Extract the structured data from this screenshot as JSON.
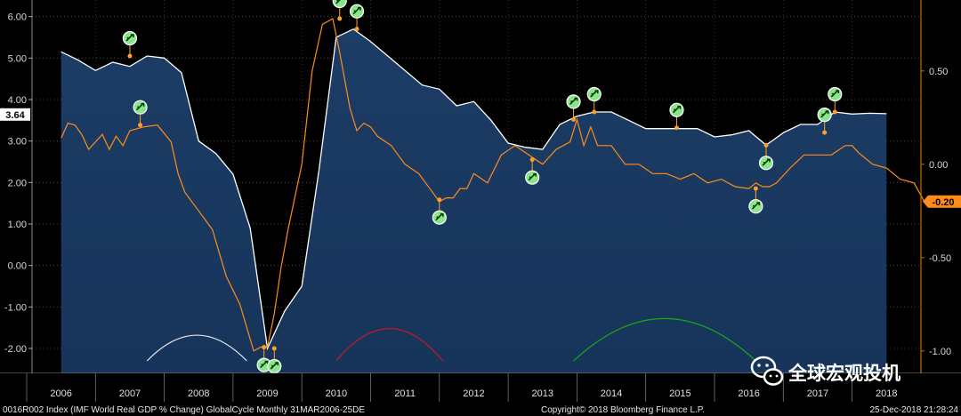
{
  "chart_data": {
    "type": "area",
    "left_axis": {
      "ticks": [
        "6.00",
        "5.00",
        "4.00",
        "3.00",
        "2.00",
        "1.00",
        "0.00",
        "-1.00",
        "-2.00"
      ],
      "ylim": [
        -2.6,
        6.4
      ]
    },
    "right_axis": {
      "ticks": [
        "0.50",
        "0.00",
        "-0.50",
        "-1.00"
      ],
      "ylim": [
        -1.12,
        0.88
      ]
    },
    "x_labels": [
      "2006",
      "2007",
      "2008",
      "2009",
      "2010",
      "2011",
      "2012",
      "2013",
      "2014",
      "2015",
      "2016",
      "2017",
      "2018"
    ],
    "series": [
      {
        "axis": "left",
        "color": "#ffffff",
        "fill": "#17345a",
        "x": [
          2006.0,
          2006.25,
          2006.5,
          2006.75,
          2007.0,
          2007.25,
          2007.5,
          2007.75,
          2008.0,
          2008.25,
          2008.5,
          2008.75,
          2009.0,
          2009.25,
          2009.5,
          2009.75,
          2010.0,
          2010.25,
          2010.5,
          2010.75,
          2011.0,
          2011.25,
          2011.5,
          2011.75,
          2012.0,
          2012.25,
          2012.5,
          2012.75,
          2013.0,
          2013.25,
          2013.5,
          2013.75,
          2014.0,
          2014.25,
          2014.5,
          2014.75,
          2015.0,
          2015.25,
          2015.5,
          2015.75,
          2016.0,
          2016.25,
          2016.5,
          2016.75,
          2017.0,
          2017.25,
          2017.5,
          2017.75,
          2018.0
        ],
        "y": [
          5.15,
          4.95,
          4.7,
          4.9,
          4.8,
          5.05,
          5.0,
          4.65,
          3.0,
          2.7,
          2.2,
          0.9,
          -2.0,
          -1.1,
          -0.5,
          2.3,
          5.5,
          5.7,
          5.4,
          5.05,
          4.7,
          4.35,
          4.25,
          3.85,
          3.95,
          3.5,
          2.95,
          2.85,
          2.8,
          3.4,
          3.6,
          3.7,
          3.7,
          3.5,
          3.3,
          3.3,
          3.3,
          3.3,
          3.1,
          3.15,
          3.25,
          2.9,
          3.2,
          3.4,
          3.4,
          3.7,
          3.65,
          3.67,
          3.66
        ]
      },
      {
        "axis": "right",
        "color": "#ff8c1a",
        "x": [
          2006.0,
          2006.1,
          2006.2,
          2006.3,
          2006.4,
          2006.5,
          2006.6,
          2006.7,
          2006.8,
          2006.9,
          2007.0,
          2007.2,
          2007.4,
          2007.6,
          2007.7,
          2007.8,
          2008.0,
          2008.2,
          2008.4,
          2008.6,
          2008.8,
          2008.9,
          2009.0,
          2009.1,
          2009.2,
          2009.3,
          2009.5,
          2009.65,
          2009.8,
          2009.95,
          2010.05,
          2010.2,
          2010.3,
          2010.4,
          2010.5,
          2010.6,
          2010.8,
          2011.0,
          2011.2,
          2011.4,
          2011.5,
          2011.6,
          2011.7,
          2011.8,
          2011.9,
          2012.0,
          2012.2,
          2012.4,
          2012.6,
          2012.8,
          2013.0,
          2013.1,
          2013.2,
          2013.4,
          2013.5,
          2013.6,
          2013.7,
          2013.8,
          2014.0,
          2014.2,
          2014.4,
          2014.6,
          2014.8,
          2015.0,
          2015.2,
          2015.4,
          2015.6,
          2015.8,
          2016.0,
          2016.1,
          2016.2,
          2016.3,
          2016.4,
          2016.6,
          2016.8,
          2017.0,
          2017.2,
          2017.4,
          2017.5,
          2017.6,
          2017.8,
          2018.0,
          2018.2,
          2018.4,
          2018.55
        ],
        "y": [
          0.14,
          0.22,
          0.21,
          0.16,
          0.08,
          0.12,
          0.16,
          0.08,
          0.15,
          0.1,
          0.18,
          0.2,
          0.21,
          0.12,
          -0.05,
          -0.15,
          -0.25,
          -0.35,
          -0.6,
          -0.75,
          -1.0,
          -0.98,
          -0.98,
          -0.8,
          -0.55,
          -0.35,
          0.0,
          0.5,
          0.75,
          0.78,
          0.6,
          0.3,
          0.18,
          0.22,
          0.2,
          0.15,
          0.1,
          0.0,
          -0.05,
          -0.15,
          -0.2,
          -0.18,
          -0.18,
          -0.13,
          -0.13,
          -0.05,
          -0.1,
          0.05,
          0.1,
          0.05,
          0.0,
          0.04,
          0.08,
          0.12,
          0.24,
          0.1,
          0.2,
          0.1,
          0.1,
          0.0,
          0.0,
          -0.05,
          -0.05,
          -0.08,
          -0.05,
          -0.1,
          -0.08,
          -0.12,
          -0.13,
          -0.1,
          -0.12,
          -0.12,
          -0.1,
          -0.02,
          0.05,
          0.05,
          0.05,
          0.1,
          0.1,
          0.06,
          0.0,
          -0.02,
          -0.08,
          -0.1,
          -0.2
        ]
      }
    ],
    "markers": [
      {
        "axis": "left",
        "x": 2007.0,
        "y": 5.05,
        "dir": "up"
      },
      {
        "axis": "right",
        "x": 2007.15,
        "y": 0.21,
        "dir": "up"
      },
      {
        "axis": "right",
        "x": 2008.95,
        "y": -0.98,
        "dir": "down"
      },
      {
        "axis": "left",
        "x": 2009.1,
        "y": -2.0,
        "dir": "down"
      },
      {
        "axis": "right",
        "x": 2010.05,
        "y": 0.78,
        "dir": "up"
      },
      {
        "axis": "left",
        "x": 2010.3,
        "y": 5.7,
        "dir": "up"
      },
      {
        "axis": "right",
        "x": 2011.5,
        "y": -0.19,
        "dir": "down"
      },
      {
        "axis": "left",
        "x": 2012.85,
        "y": 2.55,
        "dir": "down"
      },
      {
        "axis": "right",
        "x": 2013.45,
        "y": 0.24,
        "dir": "up"
      },
      {
        "axis": "left",
        "x": 2013.75,
        "y": 3.7,
        "dir": "up"
      },
      {
        "axis": "left",
        "x": 2014.95,
        "y": 3.32,
        "dir": "up"
      },
      {
        "axis": "right",
        "x": 2016.1,
        "y": -0.13,
        "dir": "down"
      },
      {
        "axis": "left",
        "x": 2016.25,
        "y": 2.9,
        "dir": "down"
      },
      {
        "axis": "right",
        "x": 2017.1,
        "y": 0.17,
        "dir": "up"
      },
      {
        "axis": "left",
        "x": 2017.25,
        "y": 3.7,
        "dir": "up"
      }
    ],
    "arcs": [
      {
        "color": "#e8e8e8",
        "x0": 2007.25,
        "x1": 2008.7,
        "peak": -1.68,
        "base": -2.3
      },
      {
        "color": "#c41a2a",
        "x0": 2010.0,
        "x1": 2011.55,
        "peak": -1.52,
        "base": -2.3
      },
      {
        "color": "#1aa81a",
        "x0": 2013.45,
        "x1": 2016.1,
        "peak": -1.28,
        "base": -2.3
      }
    ],
    "last_values": {
      "left": "3.64",
      "right": "-0.20"
    },
    "grid": true,
    "colors": {
      "background": "#000000",
      "plot_bg": "#000000",
      "area": "#17345a",
      "white_line": "#ffffff",
      "orange_line": "#ff8c1a",
      "axis": "#cc6b00",
      "marker_bg": "#8be68b"
    }
  },
  "footer": {
    "left": "0016R002 Index (IMF World Real GDP % Change) GlobalCycle  Monthly 31MAR2006-25DE",
    "middle": "Copyright© 2018 Bloomberg Finance L.P.",
    "right": "25-Dec-2018 21:28:24"
  },
  "watermark": "全球宏观投机"
}
